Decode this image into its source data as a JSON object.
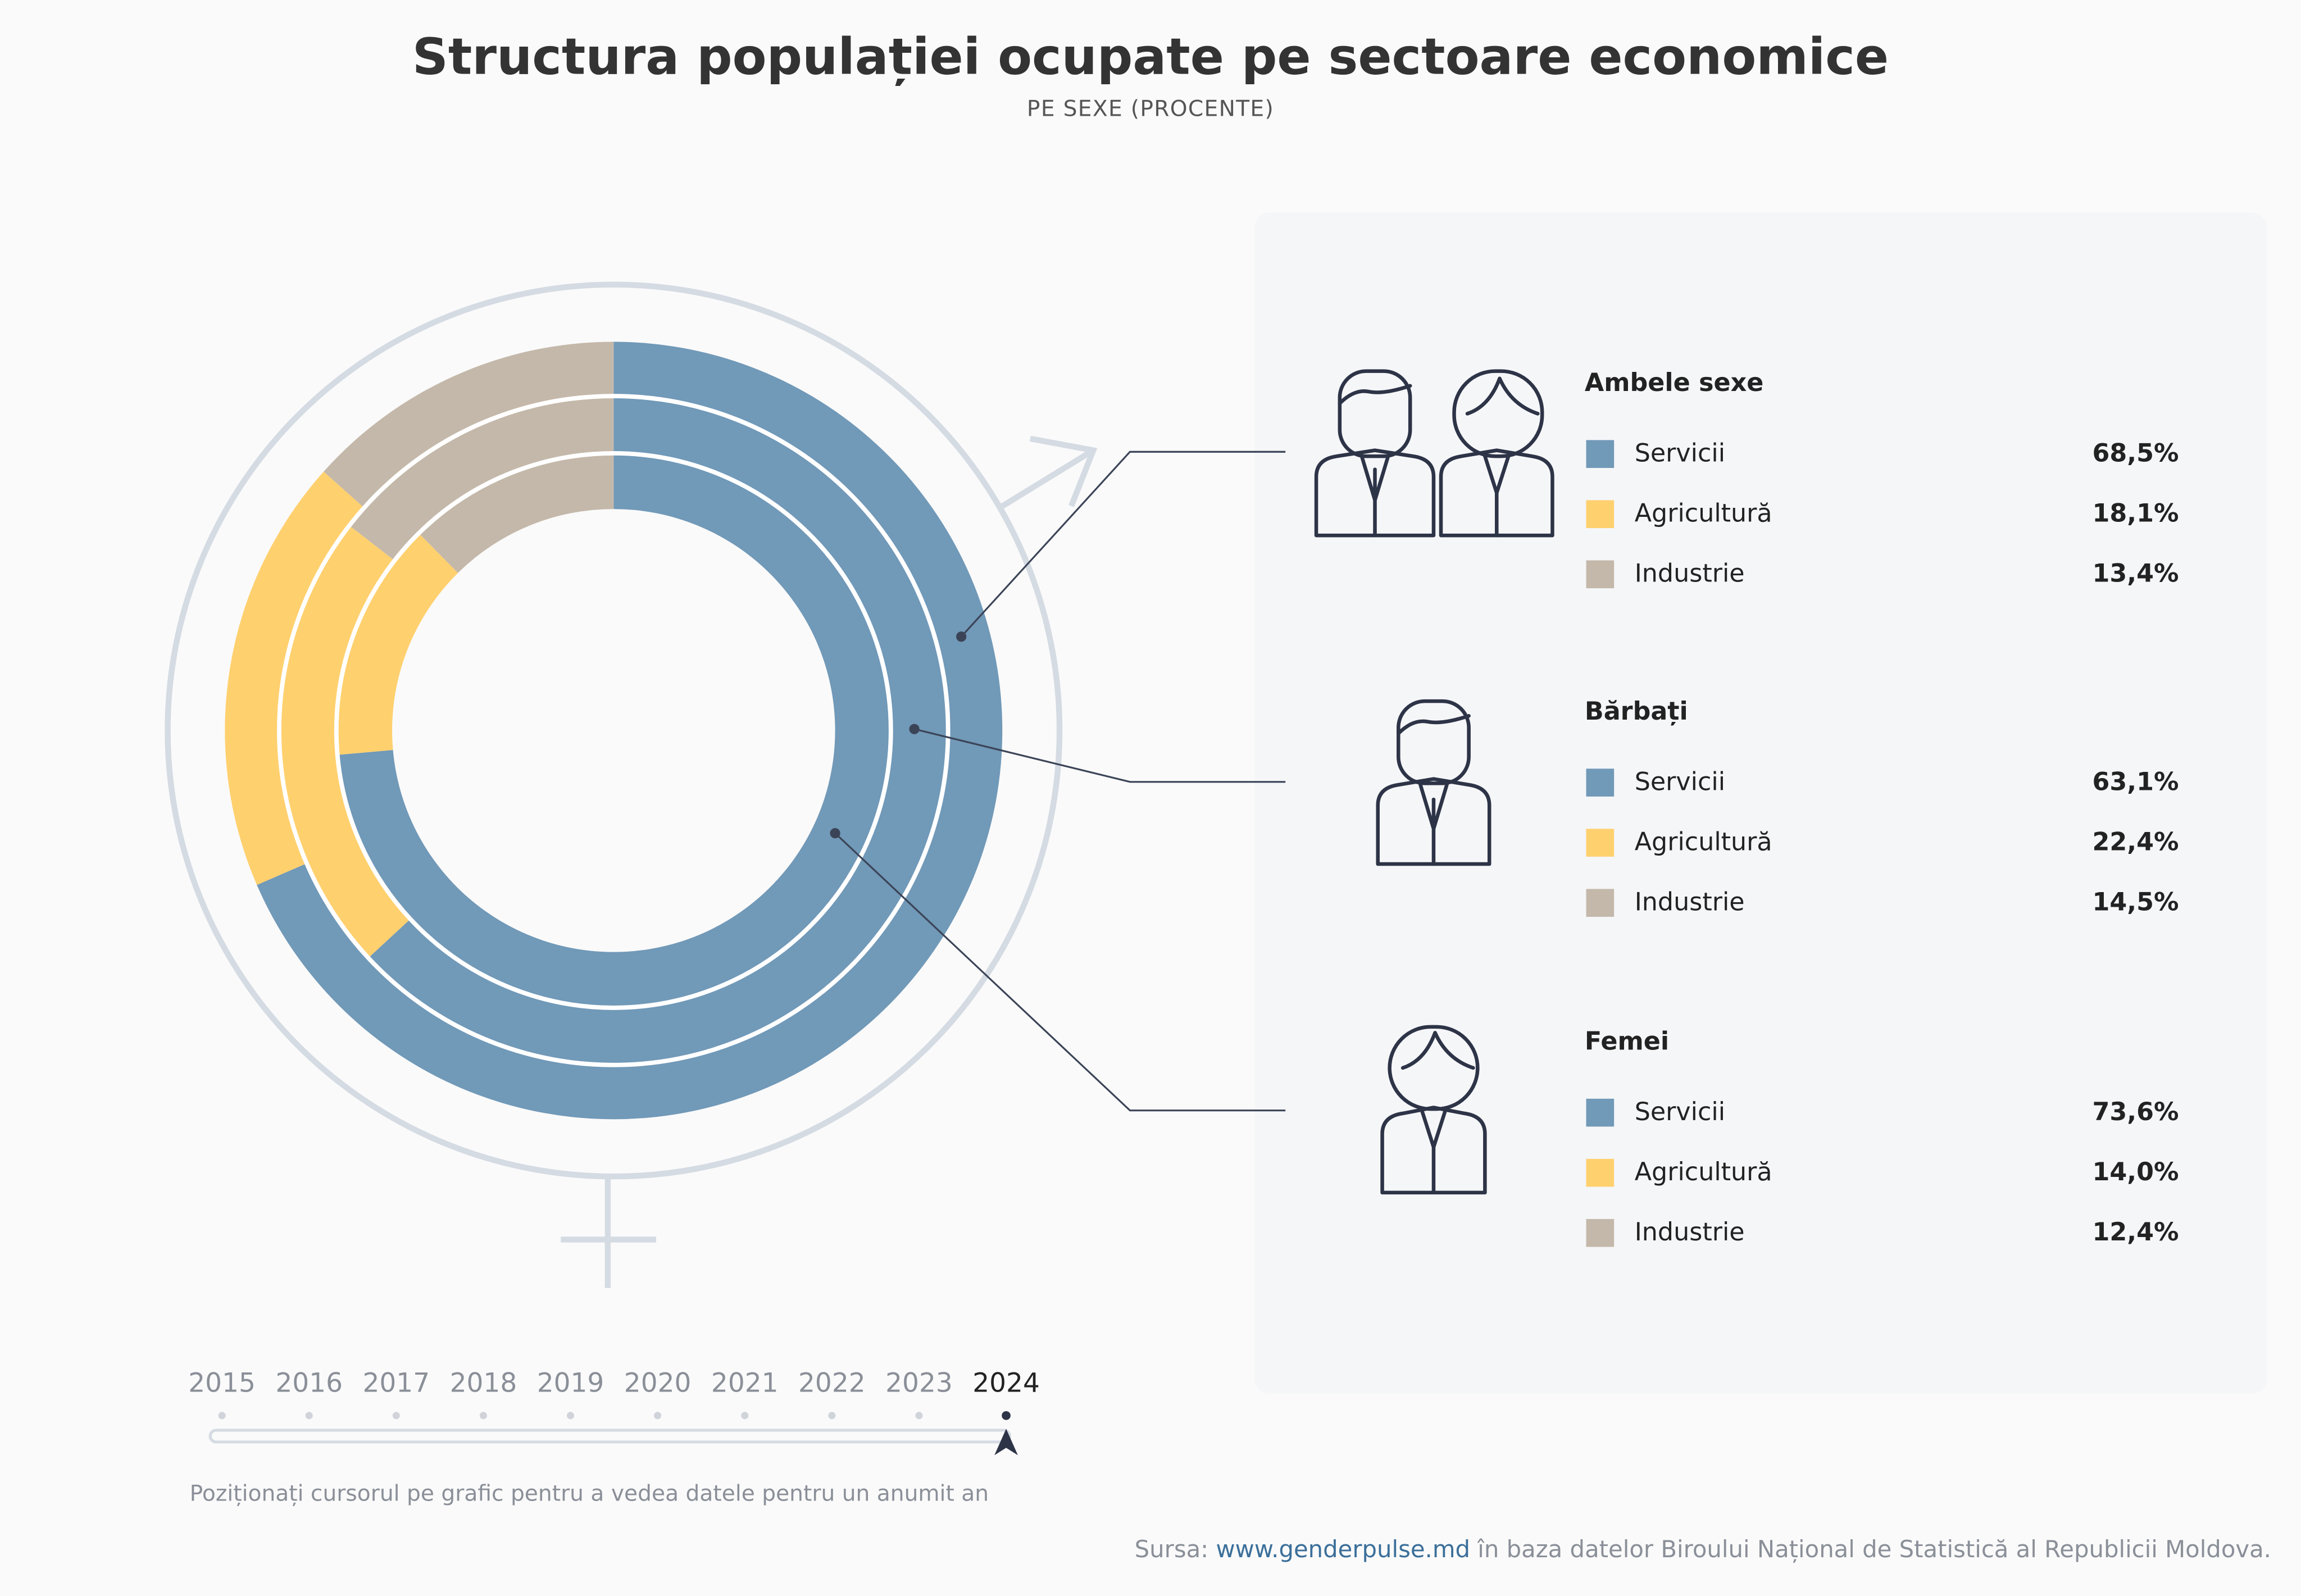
{
  "chart_data": {
    "type": "donut",
    "title": "Structura populației ocupate pe sectoare economice",
    "subtitle": "PE SEXE (PROCENTE)",
    "categories": [
      "Servicii",
      "Agricultură",
      "Industrie"
    ],
    "colors": [
      "#7199b8",
      "#ffd06e",
      "#c4b8aa"
    ],
    "series": [
      {
        "name": "Ambele sexe",
        "values": [
          68.5,
          18.1,
          13.4
        ],
        "value_labels": [
          "68,5%",
          "18,1%",
          "13,4%"
        ]
      },
      {
        "name": "Bărbați",
        "values": [
          63.1,
          22.4,
          14.5
        ],
        "value_labels": [
          "63,1%",
          "22,4%",
          "14,5%"
        ]
      },
      {
        "name": "Femei",
        "values": [
          73.6,
          14.0,
          12.4
        ],
        "value_labels": [
          "73,6%",
          "14,0%",
          "12,4%"
        ]
      }
    ],
    "years": [
      "2015",
      "2016",
      "2017",
      "2018",
      "2019",
      "2020",
      "2021",
      "2022",
      "2023",
      "2024"
    ],
    "hint": "Poziționați cursorul pe grafic pentru a vedea datele pentru un anumit an",
    "source": {
      "prefix": "Sursa:",
      "link": "www.genderpulse.md",
      "suffix": "în baza datelor Biroului Național de Statistică al Republicii Moldova."
    }
  }
}
